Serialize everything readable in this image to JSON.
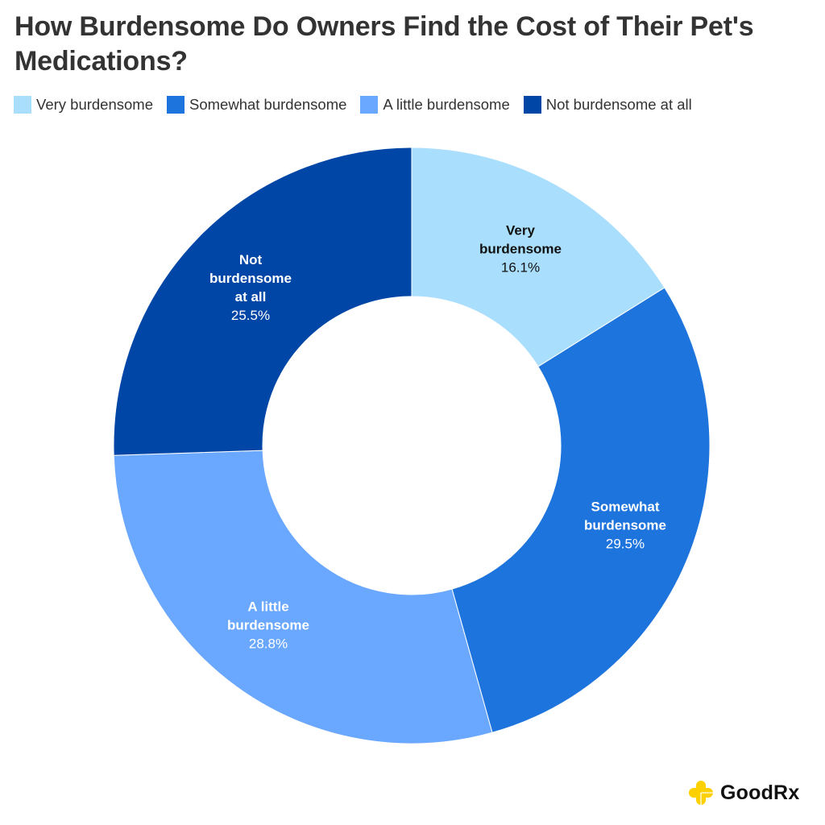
{
  "title": "How Burdensome Do Owners Find the Cost of Their Pet's Medications?",
  "legend": [
    {
      "label": "Very burdensome",
      "color": "#A9DEFD"
    },
    {
      "label": "Somewhat burdensome",
      "color": "#1E74DD"
    },
    {
      "label": "A little burdensome",
      "color": "#6AA7FE"
    },
    {
      "label": "Not burdensome at all",
      "color": "#0046A6"
    }
  ],
  "labels": [
    {
      "name": "Very\nburdensome",
      "pct": "16.1%",
      "color": "#111111"
    },
    {
      "name": "Somewhat\nburdensome",
      "pct": "29.5%",
      "color": "#ffffff"
    },
    {
      "name": "A little\nburdensome",
      "pct": "28.8%",
      "color": "#ffffff"
    },
    {
      "name": "Not\nburdensome\nat all",
      "pct": "25.5%",
      "color": "#ffffff"
    }
  ],
  "brand": {
    "name": "GoodRx",
    "logo_color": "#FDD000"
  },
  "chart_data": {
    "type": "pie",
    "subtype": "donut",
    "title": "How Burdensome Do Owners Find the Cost of Their Pet's Medications?",
    "categories": [
      "Very burdensome",
      "Somewhat burdensome",
      "A little burdensome",
      "Not burdensome at all"
    ],
    "values": [
      16.1,
      29.5,
      28.8,
      25.5
    ],
    "unit": "%",
    "colors": [
      "#A9DEFD",
      "#1E74DD",
      "#6AA7FE",
      "#0046A6"
    ],
    "start_angle": "12 o'clock",
    "direction": "clockwise",
    "legend_position": "top",
    "data_labels": true
  }
}
